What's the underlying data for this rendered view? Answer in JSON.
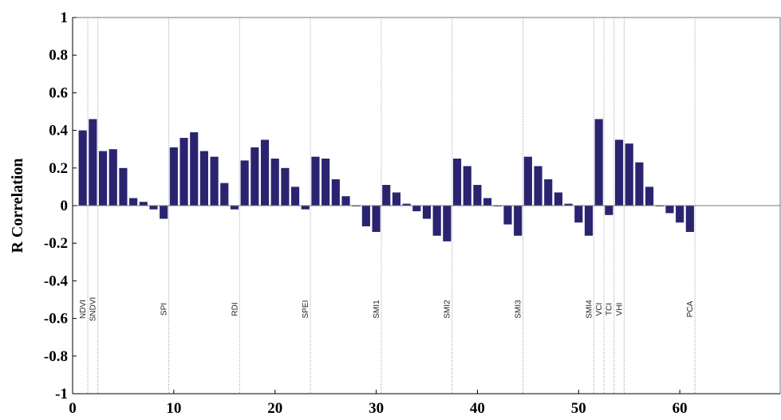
{
  "chart_data": {
    "type": "bar",
    "title": "",
    "xlabel": "",
    "ylabel": "R Correlation",
    "xlim": [
      0,
      70
    ],
    "ylim": [
      -1,
      1
    ],
    "x_ticks": [
      0,
      10,
      20,
      30,
      40,
      50,
      60
    ],
    "y_ticks": [
      -1,
      -0.8,
      -0.6,
      -0.4,
      -0.2,
      0,
      0.2,
      0.4,
      0.6,
      0.8,
      1
    ],
    "y_tick_labels": [
      "-1",
      "-0.8",
      "-0.6",
      "-0.4",
      "-0.2",
      "0",
      "0.2",
      "0.4",
      "0.6",
      "0.8",
      "1"
    ],
    "bar_color": "#2a2470",
    "grid": false,
    "x": [
      1,
      2,
      3,
      4,
      5,
      6,
      7,
      8,
      9,
      10,
      11,
      12,
      13,
      14,
      15,
      16,
      17,
      18,
      19,
      20,
      21,
      22,
      23,
      24,
      25,
      26,
      27,
      28,
      29,
      30,
      31,
      32,
      33,
      34,
      35,
      36,
      37,
      38,
      39,
      40,
      41,
      42,
      43,
      44,
      45,
      46,
      47,
      48,
      49,
      50,
      51,
      52,
      53,
      54,
      55,
      56,
      57,
      58,
      59,
      60,
      61
    ],
    "values": [
      0.4,
      0.46,
      0.29,
      0.3,
      0.2,
      0.04,
      0.02,
      -0.02,
      -0.07,
      0.31,
      0.36,
      0.39,
      0.29,
      0.26,
      0.12,
      -0.02,
      0.24,
      0.31,
      0.35,
      0.25,
      0.2,
      0.1,
      -0.02,
      0.26,
      0.25,
      0.14,
      0.05,
      0.0,
      -0.11,
      -0.14,
      0.11,
      0.07,
      0.01,
      -0.03,
      -0.07,
      -0.16,
      -0.19,
      0.25,
      0.21,
      0.11,
      0.04,
      0.0,
      -0.1,
      -0.16,
      0.26,
      0.21,
      0.14,
      0.07,
      0.01,
      -0.09,
      -0.16,
      0.46,
      -0.05,
      0.35,
      0.33,
      0.23,
      0.1,
      0.0,
      -0.04,
      -0.09,
      -0.14
    ],
    "group_markers": [
      {
        "label": "NDVI",
        "x": 1.5
      },
      {
        "label": "SNDVI",
        "x": 2.5
      },
      {
        "label": "SPI",
        "x": 9.5
      },
      {
        "label": "RDI",
        "x": 16.5
      },
      {
        "label": "SPEI",
        "x": 23.5
      },
      {
        "label": "SMI1",
        "x": 30.5
      },
      {
        "label": "SMI2",
        "x": 37.5
      },
      {
        "label": "SMI3",
        "x": 44.5
      },
      {
        "label": "SMI4",
        "x": 51.5
      },
      {
        "label": "VCI",
        "x": 52.5
      },
      {
        "label": "TCI",
        "x": 53.5
      },
      {
        "label": "VHI",
        "x": 54.5
      },
      {
        "label": "PCA",
        "x": 61.5
      }
    ]
  }
}
